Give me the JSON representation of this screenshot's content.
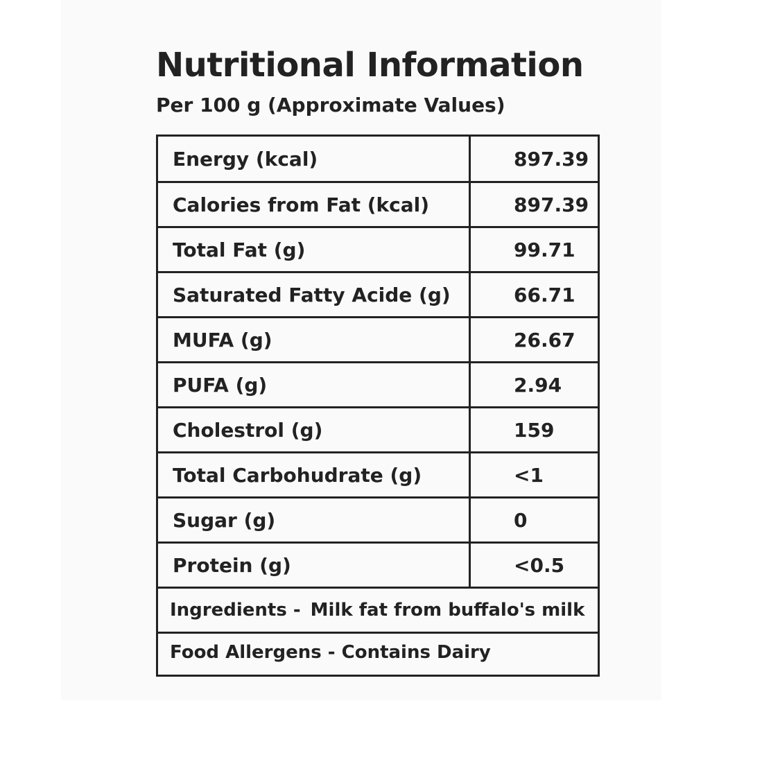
{
  "header": {
    "title": "Nutritional Information",
    "subtitle": "Per 100 g (Approximate Values)"
  },
  "nutrition_rows": [
    {
      "label": "Energy (kcal)",
      "value": "897.39"
    },
    {
      "label": "Calories from Fat (kcal)",
      "value": "897.39"
    },
    {
      "label": "Total Fat (g)",
      "value": "99.71"
    },
    {
      "label": "Saturated Fatty Acide (g)",
      "value": "66.71"
    },
    {
      "label": "MUFA (g)",
      "value": "26.67"
    },
    {
      "label": "PUFA (g)",
      "value": "2.94"
    },
    {
      "label": "Cholestrol (g)",
      "value": "159"
    },
    {
      "label": "Total Carbohudrate (g)",
      "value": "<1"
    },
    {
      "label": "Sugar (g)",
      "value": "0"
    },
    {
      "label": "Protein (g)",
      "value": "<0.5"
    }
  ],
  "ingredients": {
    "label": "Ingredients -",
    "value": "Milk fat from buffalo's milk"
  },
  "allergens": {
    "text": "Food Allergens - Contains Dairy"
  }
}
